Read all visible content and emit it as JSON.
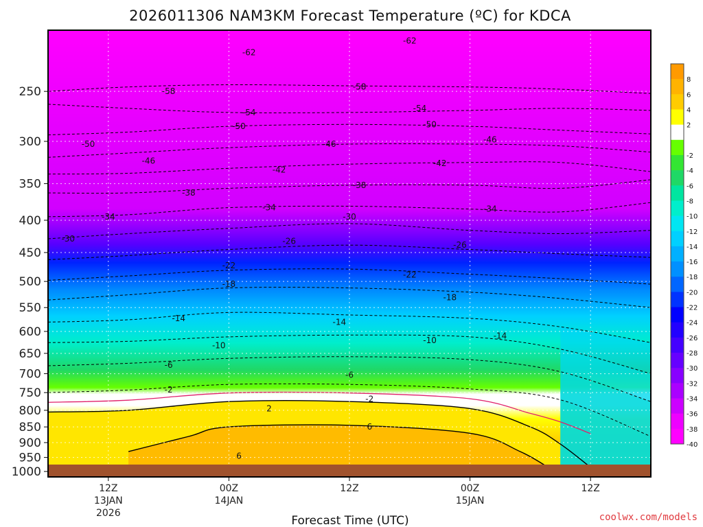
{
  "chart_data": {
    "type": "heatmap",
    "title": "2026011306 NAM3KM Forecast Temperature (ºC) for KDCA",
    "xlabel": "Forecast Time (UTC)",
    "ylabel": "",
    "source": "coolwx.com/models",
    "y_axis": {
      "scale": "log-pressure",
      "inverted": true,
      "range_hpa": [
        1020,
        200
      ],
      "ticks": [
        1000,
        950,
        900,
        850,
        800,
        750,
        700,
        650,
        600,
        550,
        500,
        450,
        400,
        350,
        300,
        250
      ]
    },
    "x_axis": {
      "range_hours": [
        6,
        66
      ],
      "ticks": [
        {
          "hour": 12,
          "lines": [
            "12Z",
            "13JAN",
            "2026"
          ]
        },
        {
          "hour": 24,
          "lines": [
            "00Z",
            "14JAN"
          ]
        },
        {
          "hour": 36,
          "lines": [
            "12Z"
          ]
        },
        {
          "hour": 48,
          "lines": [
            "00Z",
            "15JAN"
          ]
        },
        {
          "hour": 60,
          "lines": [
            "12Z"
          ]
        }
      ],
      "grid": true
    },
    "colorbar": {
      "position": "right",
      "bins": [
        {
          "label": "8",
          "color": "#ff9a00"
        },
        {
          "label": "6",
          "color": "#ffb300"
        },
        {
          "label": "4",
          "color": "#ffcc00"
        },
        {
          "label": "2",
          "color": "#ffff00"
        },
        {
          "label": "",
          "color": "#ffffff"
        },
        {
          "label": "-2",
          "color": "#66ff00"
        },
        {
          "label": "-4",
          "color": "#33e633"
        },
        {
          "label": "-6",
          "color": "#1fd866"
        },
        {
          "label": "-8",
          "color": "#00e5a0"
        },
        {
          "label": "-10",
          "color": "#00eecc"
        },
        {
          "label": "-12",
          "color": "#00e6f2"
        },
        {
          "label": "-14",
          "color": "#00d0ff"
        },
        {
          "label": "-16",
          "color": "#00b0ff"
        },
        {
          "label": "-18",
          "color": "#0090ff"
        },
        {
          "label": "-20",
          "color": "#0066ff"
        },
        {
          "label": "-22",
          "color": "#0033ff"
        },
        {
          "label": "-24",
          "color": "#0000ff"
        },
        {
          "label": "-26",
          "color": "#2200ff"
        },
        {
          "label": "-28",
          "color": "#4400ff"
        },
        {
          "label": "-30",
          "color": "#6600ff"
        },
        {
          "label": "-32",
          "color": "#8800ff"
        },
        {
          "label": "-34",
          "color": "#aa00ff"
        },
        {
          "label": "-36",
          "color": "#cc00ff"
        },
        {
          "label": "-38",
          "color": "#ee00ff"
        },
        {
          "label": "-40",
          "color": "#ff00ff"
        }
      ]
    },
    "surface_color": "#a0522d",
    "freezing_line_color": "#e0206a",
    "isotherms": [
      {
        "t": -58,
        "pts": [
          [
            6,
            250
          ],
          [
            14,
            246
          ],
          [
            24,
            244
          ],
          [
            36,
            245
          ],
          [
            48,
            246
          ],
          [
            57,
            248
          ],
          [
            66,
            252
          ]
        ]
      },
      {
        "t": -54,
        "pts": [
          [
            6,
            262
          ],
          [
            14,
            266
          ],
          [
            24,
            270
          ],
          [
            36,
            270
          ],
          [
            48,
            268
          ],
          [
            57,
            266
          ],
          [
            66,
            268
          ]
        ]
      },
      {
        "t": -50,
        "pts": [
          [
            6,
            293
          ],
          [
            14,
            290
          ],
          [
            24,
            284
          ],
          [
            36,
            282
          ],
          [
            48,
            284
          ],
          [
            57,
            288
          ],
          [
            66,
            292
          ]
        ]
      },
      {
        "t": -46,
        "pts": [
          [
            6,
            318
          ],
          [
            14,
            313
          ],
          [
            24,
            307
          ],
          [
            36,
            303
          ],
          [
            48,
            303
          ],
          [
            57,
            305
          ],
          [
            66,
            312
          ]
        ]
      },
      {
        "t": -42,
        "pts": [
          [
            6,
            338
          ],
          [
            14,
            337
          ],
          [
            24,
            331
          ],
          [
            36,
            326
          ],
          [
            48,
            324
          ],
          [
            57,
            324
          ],
          [
            66,
            335
          ]
        ]
      },
      {
        "t": -38,
        "pts": [
          [
            6,
            362
          ],
          [
            14,
            362
          ],
          [
            24,
            356
          ],
          [
            36,
            352
          ],
          [
            48,
            352
          ],
          [
            57,
            356
          ],
          [
            66,
            345
          ]
        ]
      },
      {
        "t": -34,
        "pts": [
          [
            6,
            395
          ],
          [
            14,
            392
          ],
          [
            24,
            382
          ],
          [
            36,
            380
          ],
          [
            48,
            384
          ],
          [
            57,
            388
          ],
          [
            66,
            375
          ]
        ]
      },
      {
        "t": -30,
        "pts": [
          [
            6,
            428
          ],
          [
            14,
            420
          ],
          [
            24,
            412
          ],
          [
            36,
            405
          ],
          [
            48,
            415
          ],
          [
            57,
            420
          ],
          [
            66,
            415
          ]
        ]
      },
      {
        "t": -26,
        "pts": [
          [
            6,
            462
          ],
          [
            14,
            455
          ],
          [
            24,
            445
          ],
          [
            36,
            438
          ],
          [
            48,
            445
          ],
          [
            57,
            452
          ],
          [
            66,
            458
          ]
        ]
      },
      {
        "t": -22,
        "pts": [
          [
            6,
            498
          ],
          [
            14,
            490
          ],
          [
            24,
            480
          ],
          [
            36,
            478
          ],
          [
            48,
            487
          ],
          [
            57,
            495
          ],
          [
            66,
            505
          ]
        ]
      },
      {
        "t": -18,
        "pts": [
          [
            6,
            535
          ],
          [
            14,
            525
          ],
          [
            24,
            512
          ],
          [
            36,
            512
          ],
          [
            48,
            520
          ],
          [
            57,
            532
          ],
          [
            66,
            550
          ]
        ]
      },
      {
        "t": -14,
        "pts": [
          [
            6,
            580
          ],
          [
            14,
            575
          ],
          [
            24,
            560
          ],
          [
            36,
            565
          ],
          [
            48,
            572
          ],
          [
            57,
            590
          ],
          [
            66,
            625
          ]
        ]
      },
      {
        "t": -10,
        "pts": [
          [
            6,
            625
          ],
          [
            14,
            622
          ],
          [
            24,
            612
          ],
          [
            36,
            608
          ],
          [
            48,
            612
          ],
          [
            57,
            640
          ],
          [
            66,
            700
          ]
        ]
      },
      {
        "t": -6,
        "pts": [
          [
            6,
            680
          ],
          [
            14,
            674
          ],
          [
            24,
            662
          ],
          [
            36,
            658
          ],
          [
            48,
            665
          ],
          [
            57,
            695
          ],
          [
            66,
            775
          ]
        ]
      },
      {
        "t": -2,
        "pts": [
          [
            6,
            750
          ],
          [
            14,
            743
          ],
          [
            24,
            728
          ],
          [
            36,
            728
          ],
          [
            48,
            740
          ],
          [
            57,
            770
          ],
          [
            66,
            880
          ]
        ]
      },
      {
        "t": 2,
        "pts": [
          [
            6,
            805
          ],
          [
            14,
            800
          ],
          [
            24,
            775
          ],
          [
            36,
            775
          ],
          [
            48,
            795
          ],
          [
            54,
            850
          ],
          [
            57,
            905
          ],
          [
            60,
            985
          ]
        ]
      },
      {
        "t": 6,
        "pts": [
          [
            14,
            930
          ],
          [
            20,
            880
          ],
          [
            24,
            850
          ],
          [
            36,
            845
          ],
          [
            48,
            870
          ],
          [
            53,
            930
          ],
          [
            56,
            990
          ]
        ]
      }
    ],
    "labels": [
      {
        "text": "-62",
        "hour": 26,
        "p": 217
      },
      {
        "text": "-62",
        "hour": 42,
        "p": 208
      },
      {
        "text": "-58",
        "hour": 18,
        "p": 250
      },
      {
        "text": "-58",
        "hour": 37,
        "p": 246
      },
      {
        "text": "-54",
        "hour": 26,
        "p": 270
      },
      {
        "text": "-54",
        "hour": 43,
        "p": 266
      },
      {
        "text": "-50",
        "hour": 10,
        "p": 303
      },
      {
        "text": "-50",
        "hour": 25,
        "p": 284
      },
      {
        "text": "-50",
        "hour": 44,
        "p": 282
      },
      {
        "text": "-46",
        "hour": 16,
        "p": 322
      },
      {
        "text": "-46",
        "hour": 34,
        "p": 303
      },
      {
        "text": "-46",
        "hour": 50,
        "p": 298
      },
      {
        "text": "-42",
        "hour": 29,
        "p": 333
      },
      {
        "text": "-42",
        "hour": 45,
        "p": 325
      },
      {
        "text": "-38",
        "hour": 20,
        "p": 362
      },
      {
        "text": "-38",
        "hour": 37,
        "p": 352
      },
      {
        "text": "-34",
        "hour": 12,
        "p": 395
      },
      {
        "text": "-34",
        "hour": 28,
        "p": 382
      },
      {
        "text": "-34",
        "hour": 50,
        "p": 384
      },
      {
        "text": "-30",
        "hour": 8,
        "p": 428
      },
      {
        "text": "-30",
        "hour": 36,
        "p": 395
      },
      {
        "text": "-26",
        "hour": 30,
        "p": 432
      },
      {
        "text": "-26",
        "hour": 47,
        "p": 438
      },
      {
        "text": "-22",
        "hour": 24,
        "p": 472
      },
      {
        "text": "-22",
        "hour": 42,
        "p": 488
      },
      {
        "text": "-18",
        "hour": 24,
        "p": 505
      },
      {
        "text": "-18",
        "hour": 46,
        "p": 530
      },
      {
        "text": "-14",
        "hour": 19,
        "p": 572
      },
      {
        "text": "-14",
        "hour": 35,
        "p": 580
      },
      {
        "text": "-14",
        "hour": 51,
        "p": 610
      },
      {
        "text": "-10",
        "hour": 23,
        "p": 632
      },
      {
        "text": "-10",
        "hour": 44,
        "p": 620
      },
      {
        "text": "-6",
        "hour": 18,
        "p": 678
      },
      {
        "text": "-6",
        "hour": 36,
        "p": 703
      },
      {
        "text": "-2",
        "hour": 18,
        "p": 742
      },
      {
        "text": "-2",
        "hour": 38,
        "p": 768
      },
      {
        "text": "2",
        "hour": 28,
        "p": 795
      },
      {
        "text": "6",
        "hour": 25,
        "p": 945
      },
      {
        "text": "6",
        "hour": 38,
        "p": 850
      }
    ]
  }
}
